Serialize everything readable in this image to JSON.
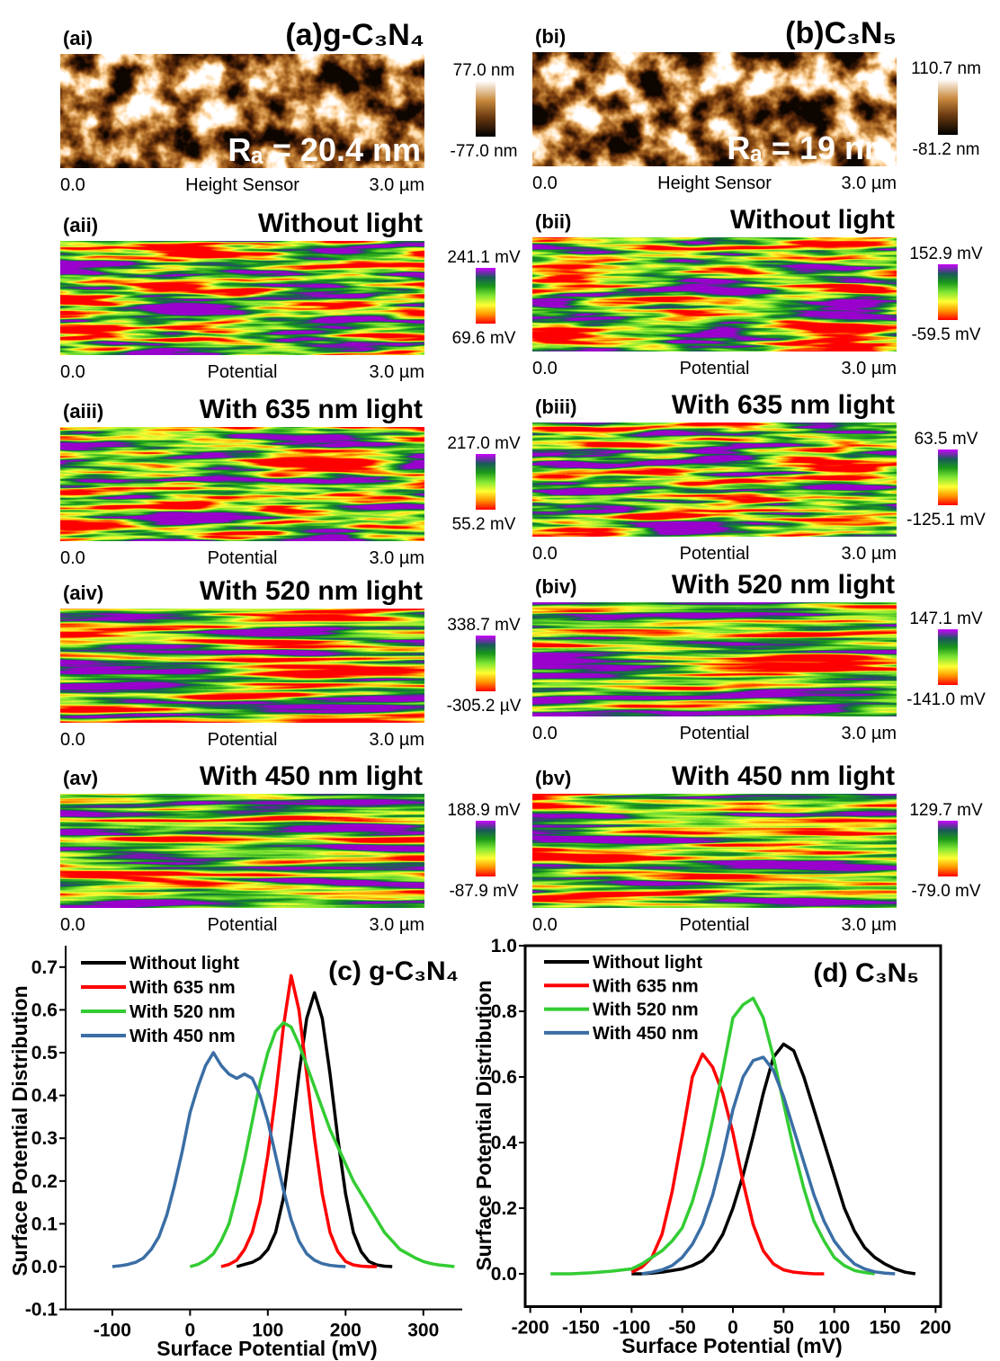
{
  "panels": [
    {
      "label": "(ai)",
      "heading": "(a)g-C₃N₄",
      "roughness": "Rₐ = 20.4 nm",
      "scale_max": "77.0 nm",
      "scale_min": "-77.0 nm",
      "x_start": "0.0",
      "x_title": "Height Sensor",
      "x_end": "3.0 µm"
    },
    {
      "label": "(aii)",
      "heading": "Without light",
      "scale_max": "241.1 mV",
      "scale_min": "69.6 mV",
      "x_start": "0.0",
      "x_title": "Potential",
      "x_end": "3.0 µm"
    },
    {
      "label": "(aiii)",
      "heading": "With 635 nm light",
      "scale_max": "217.0 mV",
      "scale_min": "55.2 mV",
      "x_start": "0.0",
      "x_title": "Potential",
      "x_end": "3.0 µm"
    },
    {
      "label": "(aiv)",
      "heading": "With 520 nm light",
      "scale_max": "338.7 mV",
      "scale_min": "-305.2 µV",
      "x_start": "0.0",
      "x_title": "Potential",
      "x_end": "3.0 µm"
    },
    {
      "label": "(av)",
      "heading": "With 450 nm light",
      "scale_max": "188.9 mV",
      "scale_min": "-87.9 mV",
      "x_start": "0.0",
      "x_title": "Potential",
      "x_end": "3.0 µm"
    },
    {
      "label": "(bi)",
      "heading": "(b)C₃N₅",
      "roughness": "Rₐ = 19 nm",
      "scale_max": "110.7 nm",
      "scale_min": "-81.2 nm",
      "x_start": "0.0",
      "x_title": "Height Sensor",
      "x_end": "3.0 µm"
    },
    {
      "label": "(bii)",
      "heading": "Without light",
      "scale_max": "152.9 mV",
      "scale_min": "-59.5 mV",
      "x_start": "0.0",
      "x_title": "Potential",
      "x_end": "3.0 µm"
    },
    {
      "label": "(biii)",
      "heading": "With 635 nm light",
      "scale_max": "63.5 mV",
      "scale_min": "-125.1 mV",
      "x_start": "0.0",
      "x_title": "Potential",
      "x_end": "3.0 µm"
    },
    {
      "label": "(biv)",
      "heading": "With 520 nm light",
      "scale_max": "147.1 mV",
      "scale_min": "-141.0 mV",
      "x_start": "0.0",
      "x_title": "Potential",
      "x_end": "3.0 µm"
    },
    {
      "label": "(bv)",
      "heading": "With 450 nm light",
      "scale_max": "129.7 mV",
      "scale_min": "-79.0 mV",
      "x_start": "0.0",
      "x_title": "Potential",
      "x_end": "3.0 µm"
    }
  ],
  "chart_data": [
    {
      "type": "line",
      "annotation": "(c) g-C₃N₄",
      "x_label": "Surface Potential (mV)",
      "y_label": "Surface Potential Distribution",
      "xlim": [
        -160,
        350
      ],
      "xticks": [
        -100,
        0,
        100,
        200,
        300
      ],
      "ylim": [
        -0.1,
        0.75
      ],
      "yticks": [
        -0.1,
        {
          "value": 0,
          "label": "0.0"
        },
        0.1,
        0.2,
        0.3,
        0.4,
        0.5,
        0.6,
        0.7
      ],
      "box": false,
      "legend": "upper left",
      "series": [
        {
          "name": "Without light",
          "color": "#000000",
          "x": [
            60,
            70,
            80,
            90,
            100,
            110,
            120,
            130,
            140,
            150,
            160,
            170,
            180,
            190,
            200,
            210,
            220,
            230,
            240,
            250,
            260
          ],
          "values": [
            0,
            0.005,
            0.01,
            0.02,
            0.04,
            0.08,
            0.16,
            0.3,
            0.45,
            0.58,
            0.64,
            0.58,
            0.45,
            0.3,
            0.17,
            0.08,
            0.035,
            0.012,
            0.004,
            0.001,
            0
          ]
        },
        {
          "name": "With 635 nm",
          "color": "#ff0000",
          "x": [
            40,
            50,
            60,
            70,
            80,
            90,
            100,
            110,
            120,
            130,
            140,
            150,
            160,
            170,
            180,
            190,
            200,
            210,
            220,
            230,
            240
          ],
          "values": [
            0,
            0.005,
            0.015,
            0.04,
            0.08,
            0.15,
            0.26,
            0.4,
            0.56,
            0.68,
            0.6,
            0.45,
            0.3,
            0.17,
            0.08,
            0.035,
            0.012,
            0.004,
            0.001,
            0,
            0
          ]
        },
        {
          "name": "With 520 nm",
          "color": "#33cc33",
          "x": [
            0,
            10,
            20,
            30,
            40,
            50,
            60,
            70,
            80,
            90,
            100,
            110,
            120,
            130,
            140,
            150,
            160,
            170,
            180,
            190,
            200,
            210,
            220,
            230,
            240,
            250,
            260,
            270,
            280,
            290,
            300,
            310,
            320,
            330,
            340
          ],
          "values": [
            0,
            0.005,
            0.015,
            0.03,
            0.06,
            0.1,
            0.17,
            0.25,
            0.34,
            0.43,
            0.5,
            0.55,
            0.57,
            0.56,
            0.52,
            0.47,
            0.42,
            0.37,
            0.32,
            0.28,
            0.24,
            0.2,
            0.17,
            0.14,
            0.11,
            0.08,
            0.06,
            0.04,
            0.03,
            0.02,
            0.012,
            0.007,
            0.004,
            0.002,
            0
          ]
        },
        {
          "name": "With 450 nm",
          "color": "#3a6ea5",
          "x": [
            -100,
            -90,
            -80,
            -70,
            -60,
            -50,
            -40,
            -30,
            -20,
            -10,
            0,
            10,
            20,
            30,
            40,
            50,
            60,
            70,
            80,
            90,
            100,
            110,
            120,
            130,
            140,
            150,
            160,
            170,
            180,
            190,
            200
          ],
          "values": [
            0,
            0.002,
            0.005,
            0.01,
            0.02,
            0.04,
            0.07,
            0.12,
            0.19,
            0.27,
            0.36,
            0.42,
            0.47,
            0.5,
            0.47,
            0.45,
            0.44,
            0.45,
            0.44,
            0.4,
            0.34,
            0.26,
            0.18,
            0.11,
            0.06,
            0.03,
            0.015,
            0.007,
            0.003,
            0.001,
            0
          ]
        }
      ]
    },
    {
      "type": "line",
      "annotation": "(d) C₃N₅",
      "x_label": "Surface Potential (mV)",
      "y_label": "Surface Potential Distribution",
      "xlim": [
        -205,
        205
      ],
      "xticks": [
        -200,
        -150,
        -100,
        -50,
        0,
        50,
        100,
        150,
        200
      ],
      "ylim": [
        -0.1,
        1.0
      ],
      "yticks": [
        {
          "value": 0,
          "label": "0.0"
        },
        0.2,
        0.4,
        0.6,
        0.8,
        {
          "value": 1,
          "label": "1.0"
        }
      ],
      "box": true,
      "legend": "upper left",
      "series": [
        {
          "name": "Without light",
          "color": "#000000",
          "x": [
            -100,
            -90,
            -80,
            -70,
            -60,
            -50,
            -40,
            -30,
            -20,
            -10,
            0,
            10,
            20,
            30,
            40,
            50,
            60,
            70,
            80,
            90,
            100,
            110,
            120,
            130,
            140,
            150,
            160,
            170,
            180
          ],
          "values": [
            0,
            0,
            0.002,
            0.005,
            0.01,
            0.015,
            0.025,
            0.04,
            0.07,
            0.12,
            0.2,
            0.3,
            0.42,
            0.55,
            0.66,
            0.7,
            0.68,
            0.6,
            0.5,
            0.4,
            0.3,
            0.2,
            0.13,
            0.08,
            0.05,
            0.03,
            0.015,
            0.005,
            0
          ]
        },
        {
          "name": "With 635 nm",
          "color": "#ff0000",
          "x": [
            -100,
            -90,
            -80,
            -70,
            -60,
            -50,
            -40,
            -30,
            -20,
            -10,
            0,
            10,
            20,
            30,
            40,
            50,
            60,
            70,
            80,
            90
          ],
          "values": [
            0.005,
            0.02,
            0.05,
            0.12,
            0.25,
            0.42,
            0.6,
            0.67,
            0.63,
            0.55,
            0.43,
            0.28,
            0.15,
            0.07,
            0.03,
            0.012,
            0.005,
            0.002,
            0,
            0
          ]
        },
        {
          "name": "With 520 nm",
          "color": "#33cc33",
          "x": [
            -180,
            -160,
            -140,
            -120,
            -100,
            -90,
            -80,
            -70,
            -60,
            -50,
            -40,
            -30,
            -20,
            -10,
            0,
            10,
            20,
            30,
            40,
            50,
            60,
            70,
            80,
            90,
            100,
            110,
            120,
            130,
            140
          ],
          "values": [
            0,
            0,
            0.003,
            0.008,
            0.015,
            0.03,
            0.05,
            0.07,
            0.1,
            0.14,
            0.22,
            0.33,
            0.47,
            0.62,
            0.78,
            0.82,
            0.84,
            0.78,
            0.66,
            0.52,
            0.38,
            0.26,
            0.16,
            0.1,
            0.05,
            0.025,
            0.01,
            0.004,
            0
          ]
        },
        {
          "name": "With 450 nm",
          "color": "#3a6ea5",
          "x": [
            -90,
            -80,
            -70,
            -60,
            -50,
            -40,
            -30,
            -20,
            -10,
            0,
            10,
            20,
            30,
            40,
            50,
            60,
            70,
            80,
            90,
            100,
            110,
            120,
            130,
            140,
            150,
            160
          ],
          "values": [
            0,
            0.005,
            0.012,
            0.025,
            0.05,
            0.09,
            0.15,
            0.24,
            0.36,
            0.5,
            0.6,
            0.65,
            0.66,
            0.62,
            0.54,
            0.44,
            0.34,
            0.24,
            0.16,
            0.1,
            0.06,
            0.03,
            0.015,
            0.006,
            0.002,
            0
          ]
        }
      ]
    }
  ]
}
